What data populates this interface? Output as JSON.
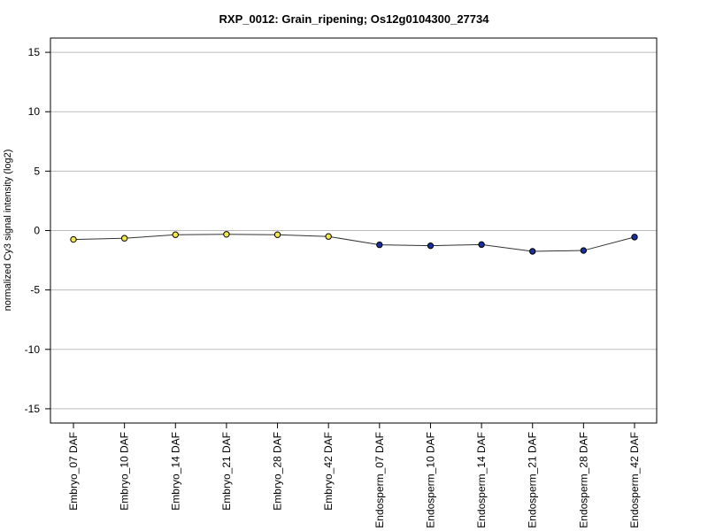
{
  "chart_data": {
    "type": "line",
    "title": "RXP_0012: Grain_ripening; Os12g0104300_27734",
    "xlabel": "",
    "ylabel": "normalized Cy3 signal intensity (log2)",
    "ylim": [
      -16.2,
      16.2
    ],
    "yticks": [
      -15,
      -10,
      -5,
      0,
      5,
      10,
      15
    ],
    "grid": true,
    "categories": [
      "Embryo_07 DAF",
      "Embryo_10 DAF",
      "Embryo_14 DAF",
      "Embryo_21 DAF",
      "Embryo_28 DAF",
      "Embryo_42 DAF",
      "Endosperm_07 DAF",
      "Endosperm_10 DAF",
      "Endosperm_14 DAF",
      "Endosperm_21 DAF",
      "Endosperm_28 DAF",
      "Endosperm_42 DAF"
    ],
    "values": [
      -0.75,
      -0.65,
      -0.35,
      -0.32,
      -0.35,
      -0.5,
      -1.2,
      -1.28,
      -1.18,
      -1.75,
      -1.68,
      -0.55
    ],
    "point_colors": [
      "#f2e84b",
      "#f2e84b",
      "#f2e84b",
      "#f2e84b",
      "#f2e84b",
      "#f2e84b",
      "#1a2f9e",
      "#1a2f9e",
      "#1a2f9e",
      "#1a2f9e",
      "#1a2f9e",
      "#1a2f9e"
    ],
    "line_color": "#333333",
    "grid_color": "#bbbbbb"
  }
}
